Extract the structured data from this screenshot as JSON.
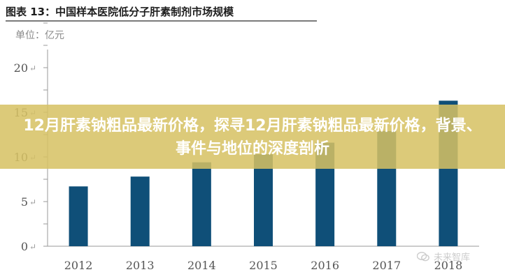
{
  "figure": {
    "title": "图表 13：中国样本医院低分子肝素制剂市场规模",
    "unit_label": "单位：亿元"
  },
  "banner": {
    "headline": "12月肝素钠粗品最新价格，探寻12月肝素钠粗品最新价格，背景、事件与地位的深度剖析"
  },
  "watermark": {
    "text": "未来智库"
  },
  "colors": {
    "bar": "#0f4f78",
    "banner": "#d6c163",
    "axis": "#9a9a9a"
  },
  "chart_data": {
    "type": "bar",
    "categories": [
      "2012",
      "2013",
      "2014",
      "2015",
      "2016",
      "2017",
      "2018"
    ],
    "values": [
      6.7,
      7.8,
      9.4,
      10.3,
      11.6,
      12.9,
      16.3
    ],
    "ylim": [
      0,
      20
    ],
    "yticks": [
      0,
      5,
      10,
      15,
      20
    ],
    "ytick_labels": [
      "0",
      "5",
      "10",
      "15",
      "20"
    ],
    "title": "中国样本医院低分子肝素制剂市场规模",
    "ylabel": "单位：亿元",
    "xlabel": "",
    "grid": false
  }
}
